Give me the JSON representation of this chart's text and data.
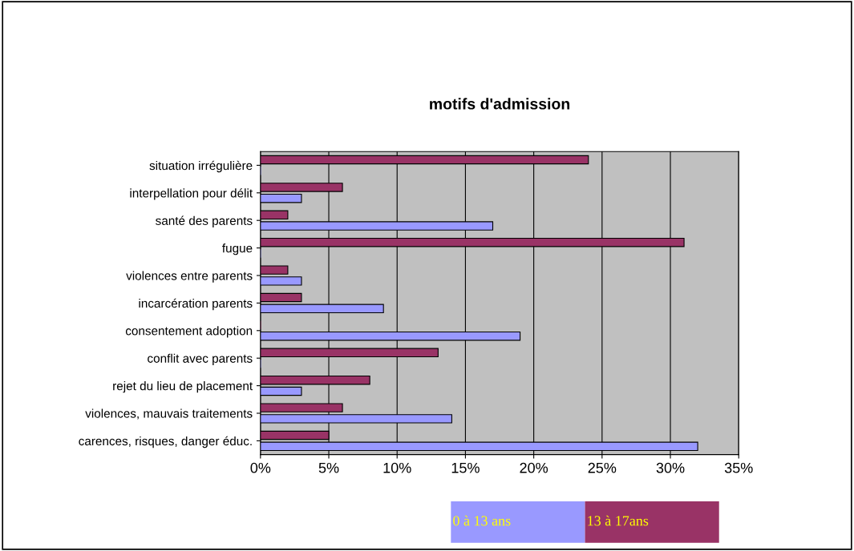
{
  "chart_data": {
    "type": "bar",
    "orientation": "horizontal",
    "title": "motifs d'admission",
    "categories": [
      "situation irrégulière",
      "interpellation pour délit",
      "santé des parents",
      "fugue",
      "violences entre parents",
      "incarcération parents",
      "consentement adoption",
      "conflit avec parents",
      "rejet du lieu de placement",
      "violences, mauvais traitements",
      "carences, risques, danger éduc."
    ],
    "series": [
      {
        "name": "13 à 17ans",
        "color": "#993366",
        "values": [
          24,
          6,
          2,
          31,
          2,
          3,
          0,
          13,
          8,
          6,
          5
        ]
      },
      {
        "name": "0 à 13 ans",
        "color": "#9999ff",
        "values": [
          0,
          3,
          17,
          0,
          3,
          9,
          19,
          0,
          3,
          14,
          32
        ]
      }
    ],
    "xlim": [
      0,
      35
    ],
    "xticks": [
      {
        "value": 0,
        "label": "0%"
      },
      {
        "value": 5,
        "label": "5%"
      },
      {
        "value": 10,
        "label": "10%"
      },
      {
        "value": 15,
        "label": "15%"
      },
      {
        "value": 20,
        "label": "20%"
      },
      {
        "value": 25,
        "label": "25%"
      },
      {
        "value": 30,
        "label": "30%"
      },
      {
        "value": 35,
        "label": "35%"
      }
    ],
    "grid": "x",
    "legend": "bottom"
  }
}
